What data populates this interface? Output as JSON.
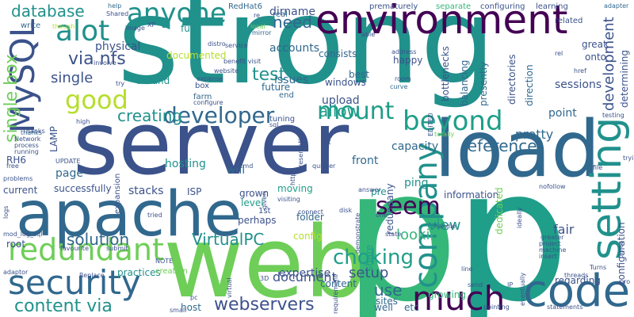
{
  "palette": {
    "background": "#ffffff",
    "dark_purple": "#440154",
    "indigo": "#3b528b",
    "blue": "#31688e",
    "teal": "#21918c",
    "green_teal": "#1f9e89",
    "green": "#35b779",
    "lime": "#6ece58",
    "yellow_green": "#b5de2b",
    "yellow": "#fde725"
  },
  "words": [
    "strong",
    "server",
    "web",
    "p",
    "load",
    "apache",
    "environment",
    "much",
    "code",
    "setting",
    "security",
    "redundant",
    "company",
    "anyone",
    "MySQL",
    "alot",
    "good",
    "beyond",
    "mount",
    "developer",
    "seem",
    "allow",
    "choking",
    "test",
    "single box",
    "via nfs",
    "database",
    "webservers",
    "content via",
    "VirtualPC",
    "solution",
    "creating",
    "reference",
    "need",
    "development",
    "setup",
    "looking",
    "view",
    "pretty",
    "fair",
    "use",
    "document",
    "single",
    "physical",
    "accounts",
    "sessions",
    "point",
    "stacks",
    "hosting",
    "issues",
    "page",
    "will",
    "dirname",
    "expertise",
    "content",
    "onto",
    "great",
    "configuration",
    "capacity",
    "ping",
    "upload",
    "front",
    "information",
    "regarding",
    "sites",
    "well",
    "etc",
    "growing",
    "folder",
    "config",
    "windows",
    "happy",
    "future",
    "best",
    "balancing",
    "directories",
    "bottlenecks",
    "direction",
    "presently",
    "determining",
    "documented",
    "around",
    "farm",
    "box",
    "tuning",
    "end",
    "consists",
    "practices",
    "creation",
    "expansion",
    "successfully",
    "current",
    "ISP",
    "grown",
    "perhaps",
    "level",
    "root",
    "RH6",
    "LAMP",
    "moving",
    "1st",
    "redundany",
    "dedicated",
    "share",
    "pre",
    "host",
    "full",
    "thanks",
    "separate",
    "configuring",
    "learning",
    "related",
    "prematurely",
    "RedHat6",
    "help",
    "Shared",
    "adapter",
    "write",
    "though",
    "real",
    "mirror",
    "local",
    "able",
    "address",
    "distro",
    "service",
    "benefit visit",
    "website",
    "expense",
    "configure",
    "curve",
    "room",
    "rel",
    "href",
    "testing",
    "EDITED",
    "totally",
    "logs",
    "mod_log_sql",
    "favourite",
    "adaptor",
    "problems",
    "Network",
    "process",
    "running",
    "free",
    "UPDATE",
    "Thanks",
    "high",
    "involve",
    "try",
    "image",
    "XP",
    "sql",
    "it",
    "presentation",
    "quicker",
    "cmd",
    "given",
    "answer",
    "nofollow",
    "file",
    "trying",
    "tried",
    "visiting",
    "connect",
    "disk",
    "demonstrate",
    "one",
    "handle",
    "ideally",
    "greater",
    "project",
    "machine",
    "insert",
    "Turns",
    "threads",
    "pro",
    "line",
    "send",
    "IP",
    "statements",
    "pointing",
    "eventually",
    "times",
    "small",
    "3D",
    "submit",
    "NOTE",
    "Replace",
    "virtual",
    "pc",
    "httpd",
    "state",
    "requirement",
    "re",
    "large"
  ]
}
